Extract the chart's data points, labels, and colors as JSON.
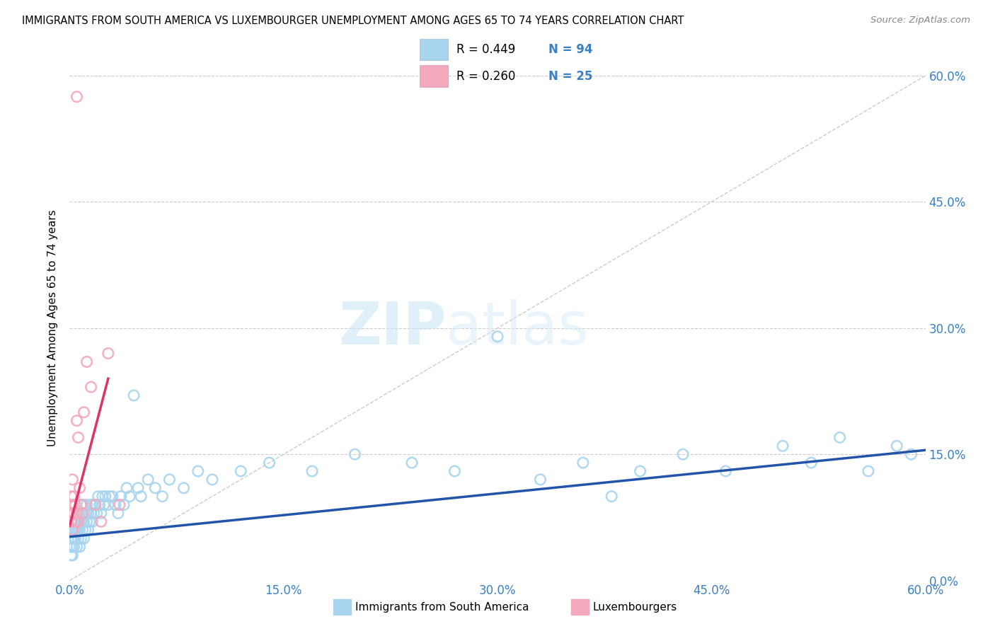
{
  "title": "IMMIGRANTS FROM SOUTH AMERICA VS LUXEMBOURGER UNEMPLOYMENT AMONG AGES 65 TO 74 YEARS CORRELATION CHART",
  "source": "Source: ZipAtlas.com",
  "ylabel": "Unemployment Among Ages 65 to 74 years",
  "xlim": [
    0.0,
    0.6
  ],
  "ylim": [
    0.0,
    0.6
  ],
  "xtick_labels": [
    "0.0%",
    "15.0%",
    "30.0%",
    "45.0%",
    "60.0%"
  ],
  "xtick_vals": [
    0.0,
    0.15,
    0.3,
    0.45,
    0.6
  ],
  "ytick_labels_right": [
    "0.0%",
    "15.0%",
    "30.0%",
    "45.0%",
    "60.0%"
  ],
  "ytick_vals": [
    0.0,
    0.15,
    0.3,
    0.45,
    0.6
  ],
  "blue_color": "#A8D4ED",
  "pink_color": "#F4A8BC",
  "blue_line_color": "#2255AA",
  "pink_line_color": "#DD3366",
  "diag_color": "#CCCCCC",
  "watermark_zip": "ZIP",
  "watermark_atlas": "atlas",
  "legend_label_blue": "Immigrants from South America",
  "legend_label_pink": "Luxembourgers",
  "blue_scatter_x": [
    0.001,
    0.001,
    0.001,
    0.001,
    0.001,
    0.001,
    0.002,
    0.002,
    0.002,
    0.002,
    0.002,
    0.003,
    0.003,
    0.003,
    0.003,
    0.004,
    0.004,
    0.004,
    0.005,
    0.005,
    0.005,
    0.005,
    0.006,
    0.006,
    0.006,
    0.007,
    0.007,
    0.007,
    0.008,
    0.008,
    0.008,
    0.009,
    0.009,
    0.01,
    0.01,
    0.01,
    0.011,
    0.011,
    0.012,
    0.012,
    0.013,
    0.013,
    0.014,
    0.015,
    0.015,
    0.016,
    0.016,
    0.017,
    0.018,
    0.019,
    0.02,
    0.021,
    0.022,
    0.023,
    0.024,
    0.025,
    0.027,
    0.028,
    0.03,
    0.032,
    0.034,
    0.036,
    0.038,
    0.04,
    0.042,
    0.045,
    0.048,
    0.05,
    0.055,
    0.06,
    0.065,
    0.07,
    0.08,
    0.09,
    0.1,
    0.12,
    0.14,
    0.17,
    0.2,
    0.24,
    0.27,
    0.3,
    0.33,
    0.36,
    0.38,
    0.4,
    0.43,
    0.46,
    0.5,
    0.52,
    0.54,
    0.56,
    0.58,
    0.59
  ],
  "blue_scatter_y": [
    0.04,
    0.05,
    0.06,
    0.07,
    0.03,
    0.08,
    0.05,
    0.04,
    0.06,
    0.07,
    0.03,
    0.04,
    0.06,
    0.07,
    0.05,
    0.06,
    0.05,
    0.07,
    0.04,
    0.06,
    0.07,
    0.08,
    0.05,
    0.06,
    0.07,
    0.04,
    0.06,
    0.08,
    0.05,
    0.07,
    0.09,
    0.06,
    0.08,
    0.05,
    0.07,
    0.09,
    0.06,
    0.08,
    0.07,
    0.09,
    0.06,
    0.08,
    0.07,
    0.08,
    0.09,
    0.07,
    0.09,
    0.08,
    0.09,
    0.08,
    0.1,
    0.09,
    0.08,
    0.1,
    0.09,
    0.1,
    0.09,
    0.1,
    0.1,
    0.09,
    0.08,
    0.1,
    0.09,
    0.11,
    0.1,
    0.22,
    0.11,
    0.1,
    0.12,
    0.11,
    0.1,
    0.12,
    0.11,
    0.13,
    0.12,
    0.13,
    0.14,
    0.13,
    0.15,
    0.14,
    0.13,
    0.29,
    0.12,
    0.14,
    0.1,
    0.13,
    0.15,
    0.13,
    0.16,
    0.14,
    0.17,
    0.13,
    0.16,
    0.15
  ],
  "pink_scatter_x": [
    0.001,
    0.001,
    0.001,
    0.002,
    0.002,
    0.002,
    0.003,
    0.003,
    0.004,
    0.004,
    0.005,
    0.005,
    0.006,
    0.006,
    0.007,
    0.008,
    0.009,
    0.01,
    0.012,
    0.015,
    0.018,
    0.022,
    0.027,
    0.035,
    0.005
  ],
  "pink_scatter_y": [
    0.07,
    0.08,
    0.1,
    0.06,
    0.09,
    0.12,
    0.08,
    0.1,
    0.07,
    0.09,
    0.19,
    0.08,
    0.17,
    0.07,
    0.11,
    0.09,
    0.08,
    0.2,
    0.26,
    0.23,
    0.09,
    0.07,
    0.27,
    0.09,
    0.575
  ],
  "blue_trend_x0": 0.0,
  "blue_trend_y0": 0.052,
  "blue_trend_x1": 0.6,
  "blue_trend_y1": 0.155,
  "pink_trend_x0": 0.0,
  "pink_trend_y0": 0.065,
  "pink_trend_x1": 0.027,
  "pink_trend_y1": 0.24
}
